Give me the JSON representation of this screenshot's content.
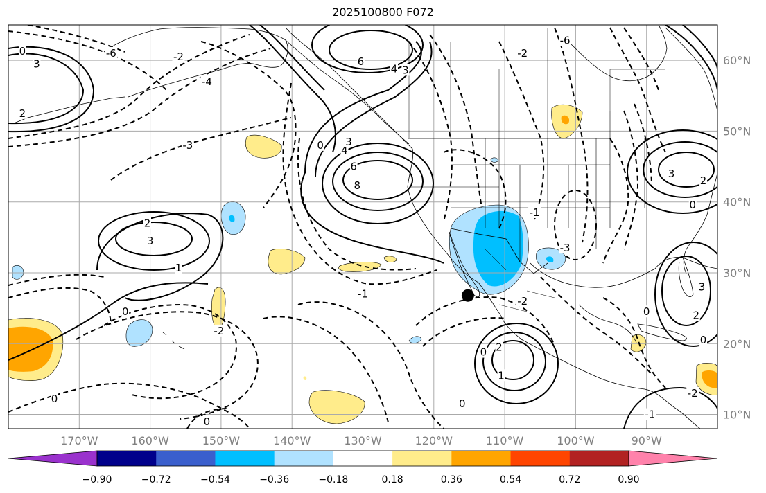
{
  "title": "2025100800 F072",
  "map": {
    "projection": "plate carree",
    "lon_range": [
      -180,
      -80
    ],
    "lat_range": [
      8,
      65
    ],
    "lon_ticks": [
      {
        "value": -170,
        "label": "170°W"
      },
      {
        "value": -160,
        "label": "160°W"
      },
      {
        "value": -150,
        "label": "150°W"
      },
      {
        "value": -140,
        "label": "140°W"
      },
      {
        "value": -130,
        "label": "130°W"
      },
      {
        "value": -120,
        "label": "120°W"
      },
      {
        "value": -110,
        "label": "110°W"
      },
      {
        "value": -100,
        "label": "100°W"
      },
      {
        "value": -90,
        "label": "90°W"
      }
    ],
    "lat_ticks": [
      {
        "value": 60,
        "label": "60°N"
      },
      {
        "value": 50,
        "label": "50°N"
      },
      {
        "value": 40,
        "label": "40°N"
      },
      {
        "value": 30,
        "label": "30°N"
      },
      {
        "value": 20,
        "label": "20°N"
      },
      {
        "value": 10,
        "label": "10°N"
      }
    ],
    "marker": {
      "name": "point-marker",
      "lon": -115.2,
      "lat": 26.8,
      "color": "#000000"
    },
    "contour_labels": [
      {
        "text": "6",
        "lon": -130.3,
        "lat": 59.8
      },
      {
        "text": "4",
        "lon": -125.6,
        "lat": 58.8
      },
      {
        "text": "3",
        "lon": -124.0,
        "lat": 58.6
      },
      {
        "text": "8",
        "lon": -130.8,
        "lat": 42.3
      },
      {
        "text": "6",
        "lon": -131.3,
        "lat": 45.0
      },
      {
        "text": "4",
        "lon": -132.6,
        "lat": 47.3
      },
      {
        "text": "3",
        "lon": -132.0,
        "lat": 48.5
      },
      {
        "text": "0",
        "lon": -136.0,
        "lat": 48.0
      },
      {
        "text": "-3",
        "lon": -154.7,
        "lat": 48.0
      },
      {
        "text": "-4",
        "lon": -152.0,
        "lat": 57.0
      },
      {
        "text": "2",
        "lon": -160.4,
        "lat": 37.0
      },
      {
        "text": "3",
        "lon": -160.0,
        "lat": 34.5
      },
      {
        "text": "1",
        "lon": -156.0,
        "lat": 30.7
      },
      {
        "text": "0",
        "lon": -163.5,
        "lat": 24.5
      },
      {
        "text": "0",
        "lon": -173.5,
        "lat": 12.2
      },
      {
        "text": "0",
        "lon": -152.0,
        "lat": 9.0
      },
      {
        "text": "-2",
        "lon": -150.3,
        "lat": 21.8
      },
      {
        "text": "-1",
        "lon": -130.0,
        "lat": 27.0
      },
      {
        "text": "0",
        "lon": -116.0,
        "lat": 11.5
      },
      {
        "text": "0",
        "lon": -113.0,
        "lat": 18.8
      },
      {
        "text": "2",
        "lon": -110.8,
        "lat": 19.5
      },
      {
        "text": "1",
        "lon": -110.5,
        "lat": 15.5
      },
      {
        "text": "-3",
        "lon": -101.5,
        "lat": 33.5
      },
      {
        "text": "-1",
        "lon": -105.8,
        "lat": 38.5
      },
      {
        "text": "-2",
        "lon": -107.5,
        "lat": 26.0
      },
      {
        "text": "-6",
        "lon": -101.5,
        "lat": 62.8
      },
      {
        "text": "-2",
        "lon": -107.5,
        "lat": 61.0
      },
      {
        "text": "3",
        "lon": -86.5,
        "lat": 44.0
      },
      {
        "text": "2",
        "lon": -82.0,
        "lat": 43.0
      },
      {
        "text": "0",
        "lon": -83.5,
        "lat": 39.6
      },
      {
        "text": "0",
        "lon": -90.0,
        "lat": 24.5
      },
      {
        "text": "3",
        "lon": -82.2,
        "lat": 28.0
      },
      {
        "text": "2",
        "lon": -83.0,
        "lat": 24.0
      },
      {
        "text": "0",
        "lon": -82.0,
        "lat": 20.5
      },
      {
        "text": "-2",
        "lon": -83.5,
        "lat": 13.0
      },
      {
        "text": "-1",
        "lon": -89.5,
        "lat": 10.0
      },
      {
        "text": "0",
        "lon": -178.0,
        "lat": 61.3
      },
      {
        "text": "3",
        "lon": -176.0,
        "lat": 59.5
      },
      {
        "text": "-6",
        "lon": -165.5,
        "lat": 61.0
      },
      {
        "text": "2",
        "lon": -178.0,
        "lat": 52.5
      },
      {
        "text": "-2",
        "lon": -156.0,
        "lat": 60.5
      }
    ]
  },
  "colorbar": {
    "colors": [
      "#9a32cd",
      "#00008b",
      "#3a5fcd",
      "#00bfff",
      "#b0e2ff",
      "#ffffff",
      "#ffec8b",
      "#ffa500",
      "#ff4500",
      "#b22222",
      "#ff82ab"
    ],
    "tick_labels": [
      "−0.90",
      "−0.72",
      "−0.54",
      "−0.36",
      "−0.18",
      "0.18",
      "0.36",
      "0.54",
      "0.72",
      "0.90"
    ]
  }
}
